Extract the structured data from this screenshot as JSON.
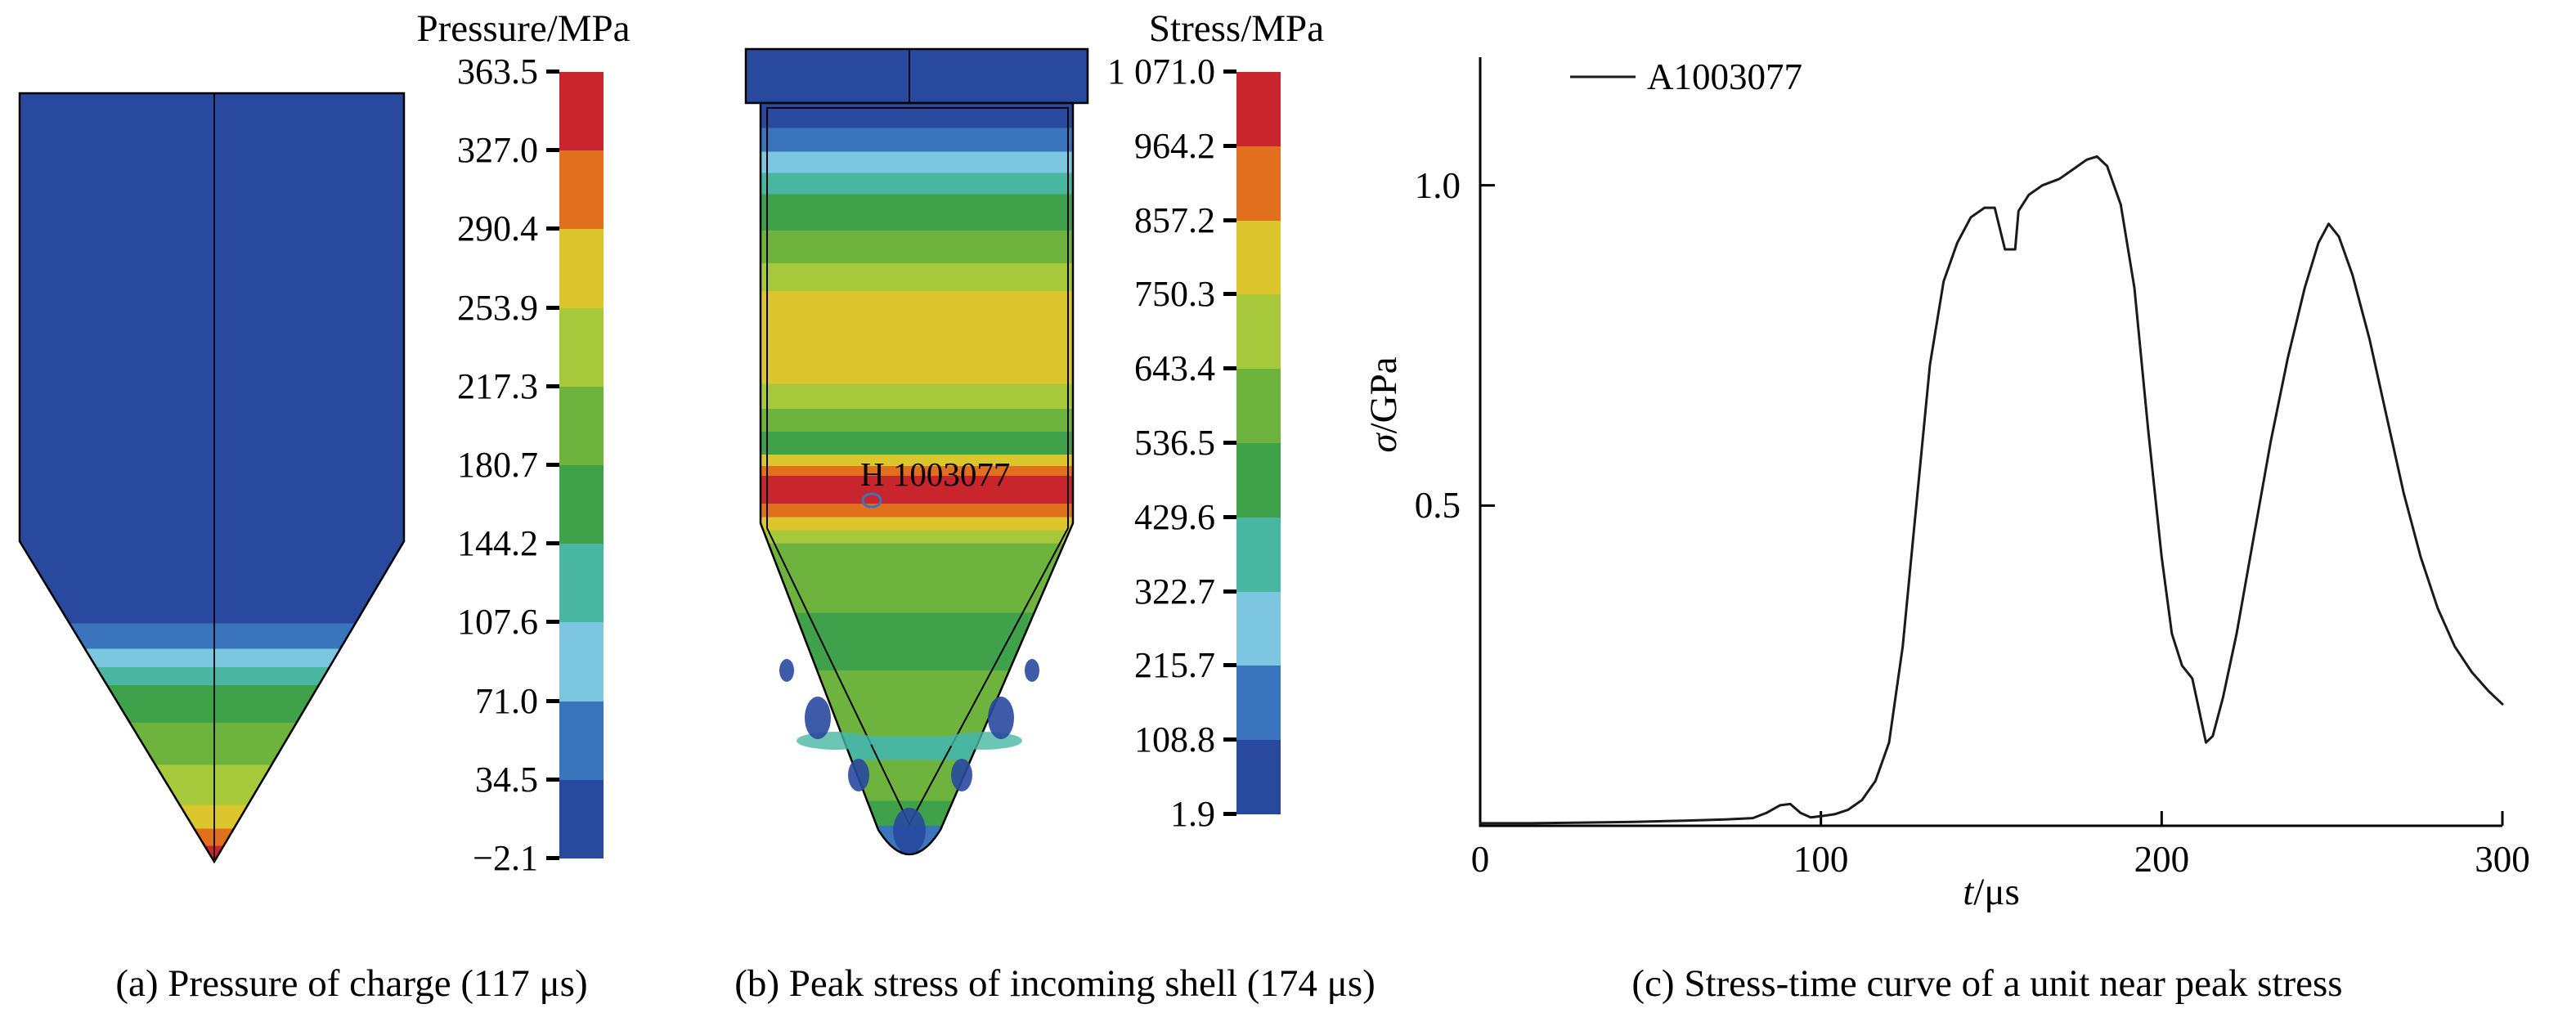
{
  "palette": [
    "#c8252c",
    "#e1701e",
    "#dcc62e",
    "#a8c83b",
    "#6db33e",
    "#3fa14a",
    "#49b6a2",
    "#7cc6df",
    "#3a74bd",
    "#28499e"
  ],
  "panel_a": {
    "caption": "(a) Pressure of charge (117 μs)",
    "colorbar": {
      "title": "Pressure/MPa",
      "tick_labels": [
        "363.5",
        "327.0",
        "290.4",
        "253.9",
        "217.3",
        "180.7",
        "144.2",
        "107.6",
        "71.0",
        "34.5",
        "−2.1"
      ]
    },
    "bands": [
      [
        0,
        9
      ],
      [
        0.69,
        8
      ],
      [
        0.723,
        7
      ],
      [
        0.747,
        6
      ],
      [
        0.77,
        5
      ],
      [
        0.819,
        4
      ],
      [
        0.874,
        3
      ],
      [
        0.926,
        2
      ],
      [
        0.957,
        1
      ],
      [
        0.979,
        0
      ]
    ]
  },
  "panel_b": {
    "caption": "(b) Peak stress of incoming shell (174 μs)",
    "annotation": "H 1003077",
    "colorbar": {
      "title": "Stress/MPa",
      "tick_labels": [
        "1 071.0",
        "964.2",
        "857.2",
        "750.3",
        "643.4",
        "536.5",
        "429.6",
        "322.7",
        "215.7",
        "108.8",
        "1.9"
      ]
    },
    "bands": [
      [
        0,
        9
      ],
      [
        0.096,
        8
      ],
      [
        0.125,
        7
      ],
      [
        0.151,
        6
      ],
      [
        0.177,
        5
      ],
      [
        0.221,
        4
      ],
      [
        0.261,
        3
      ],
      [
        0.295,
        2
      ],
      [
        0.408,
        3
      ],
      [
        0.438,
        4
      ],
      [
        0.466,
        5
      ],
      [
        0.494,
        2
      ],
      [
        0.508,
        1
      ],
      [
        0.52,
        0
      ],
      [
        0.554,
        1
      ],
      [
        0.57,
        2
      ],
      [
        0.586,
        3
      ],
      [
        0.602,
        4
      ],
      [
        0.687,
        5
      ],
      [
        0.757,
        4
      ],
      [
        0.837,
        6
      ],
      [
        0.866,
        4
      ],
      [
        0.916,
        5
      ],
      [
        0.946,
        8
      ],
      [
        0.976,
        9
      ]
    ]
  },
  "panel_c": {
    "caption": "(c) Stress-time curve of a unit near peak stress",
    "labels": {
      "x_var": "t",
      "x_unit": "/μs",
      "y_var": "σ",
      "y_unit": "/GPa"
    }
  },
  "chart_data": {
    "type": "line",
    "title": "Stress-time curve of a unit near peak stress",
    "xlabel": "t/μs",
    "ylabel": "σ/GPa",
    "xlim": [
      0,
      300
    ],
    "ylim": [
      0,
      1.2
    ],
    "xticks": [
      {
        "v": 0,
        "label": "0"
      },
      {
        "v": 100,
        "label": "100"
      },
      {
        "v": 200,
        "label": "200"
      },
      {
        "v": 300,
        "label": "300"
      }
    ],
    "yticks": [
      {
        "v": 0.5,
        "label": "0.5"
      },
      {
        "v": 1.0,
        "label": "1.0"
      }
    ],
    "grid": false,
    "legend_position": "top-left",
    "series": [
      {
        "name": "A1003077",
        "color": "#1a1a1a",
        "points": [
          [
            0,
            0.004
          ],
          [
            15,
            0.004
          ],
          [
            30,
            0.005
          ],
          [
            45,
            0.006
          ],
          [
            60,
            0.008
          ],
          [
            72,
            0.01
          ],
          [
            80,
            0.012
          ],
          [
            84,
            0.02
          ],
          [
            88,
            0.032
          ],
          [
            91,
            0.034
          ],
          [
            94,
            0.02
          ],
          [
            97,
            0.013
          ],
          [
            100,
            0.015
          ],
          [
            104,
            0.018
          ],
          [
            108,
            0.025
          ],
          [
            112,
            0.04
          ],
          [
            116,
            0.07
          ],
          [
            120,
            0.13
          ],
          [
            124,
            0.28
          ],
          [
            128,
            0.5
          ],
          [
            132,
            0.72
          ],
          [
            136,
            0.85
          ],
          [
            140,
            0.91
          ],
          [
            144,
            0.95
          ],
          [
            148,
            0.965
          ],
          [
            151,
            0.965
          ],
          [
            154,
            0.9
          ],
          [
            157,
            0.9
          ],
          [
            158,
            0.96
          ],
          [
            161,
            0.985
          ],
          [
            165,
            1.0
          ],
          [
            170,
            1.01
          ],
          [
            174,
            1.025
          ],
          [
            178,
            1.04
          ],
          [
            181,
            1.045
          ],
          [
            184,
            1.03
          ],
          [
            188,
            0.97
          ],
          [
            192,
            0.84
          ],
          [
            196,
            0.62
          ],
          [
            200,
            0.42
          ],
          [
            203,
            0.3
          ],
          [
            206,
            0.25
          ],
          [
            209,
            0.23
          ],
          [
            211,
            0.18
          ],
          [
            213,
            0.13
          ],
          [
            215,
            0.14
          ],
          [
            218,
            0.2
          ],
          [
            222,
            0.3
          ],
          [
            227,
            0.45
          ],
          [
            232,
            0.6
          ],
          [
            237,
            0.73
          ],
          [
            242,
            0.84
          ],
          [
            246,
            0.91
          ],
          [
            249,
            0.94
          ],
          [
            252,
            0.92
          ],
          [
            256,
            0.86
          ],
          [
            261,
            0.76
          ],
          [
            266,
            0.64
          ],
          [
            271,
            0.52
          ],
          [
            276,
            0.42
          ],
          [
            281,
            0.34
          ],
          [
            286,
            0.28
          ],
          [
            291,
            0.24
          ],
          [
            296,
            0.21
          ],
          [
            300,
            0.19
          ]
        ]
      }
    ]
  }
}
